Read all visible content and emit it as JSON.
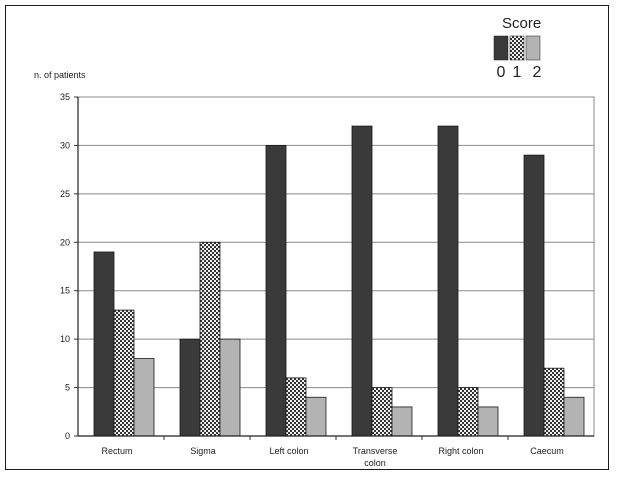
{
  "chart_data": {
    "type": "bar",
    "title": "",
    "xlabel": "",
    "ylabel": "n. of patients",
    "ylim": [
      0,
      35
    ],
    "yticks": [
      0,
      5,
      10,
      15,
      20,
      25,
      30,
      35
    ],
    "grid": true,
    "legend_position": "top-right",
    "legend_title": "Score",
    "categories": [
      [
        "Rectum"
      ],
      [
        "Sigma"
      ],
      [
        "Left colon"
      ],
      [
        "Transverse",
        "colon"
      ],
      [
        "Right colon"
      ],
      [
        "Caecum"
      ]
    ],
    "series": [
      {
        "name": "0",
        "pattern": "solid-dark",
        "color": "#3a3a3a",
        "values": [
          19,
          10,
          30,
          32,
          32,
          29
        ]
      },
      {
        "name": "1",
        "pattern": "checker",
        "color": "#777777",
        "values": [
          13,
          20,
          6,
          5,
          5,
          7
        ]
      },
      {
        "name": "2",
        "pattern": "solid-light",
        "color": "#b3b3b3",
        "values": [
          8,
          10,
          4,
          3,
          3,
          4
        ]
      }
    ]
  }
}
